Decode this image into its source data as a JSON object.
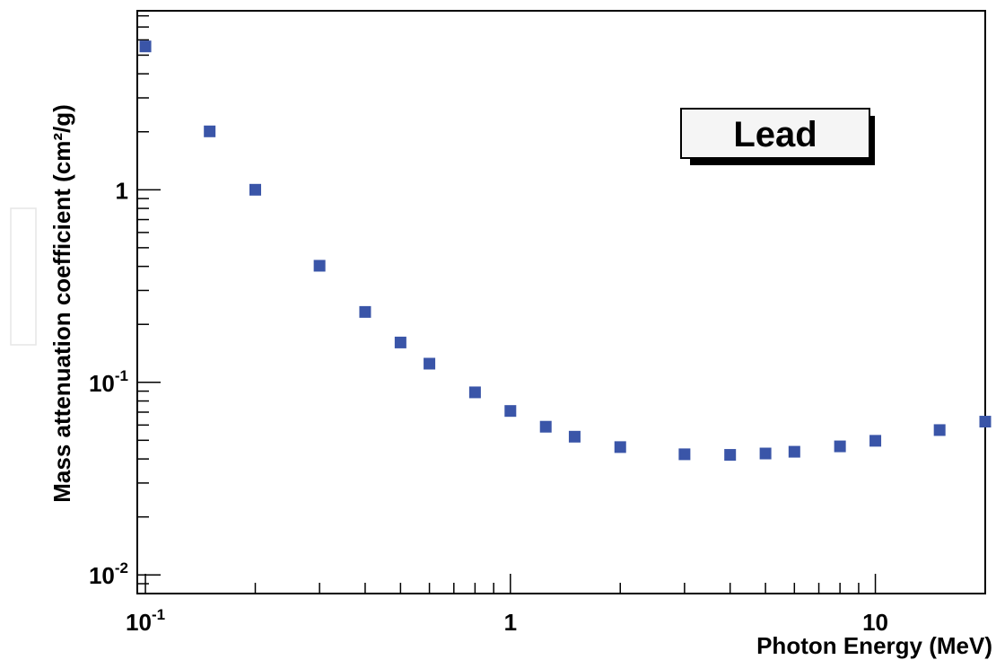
{
  "chart_data": {
    "type": "scatter",
    "title": "",
    "xlabel": "Photon Energy (MeV)",
    "ylabel": "Mass attenuation coefficient (cm²/g)",
    "xscale": "log",
    "yscale": "log",
    "xlim": [
      0.095,
      20.0
    ],
    "ylim": [
      0.008,
      8.5
    ],
    "grid": false,
    "x_ticks": [
      {
        "value": 0.1,
        "mantissa": "10",
        "exp": "-1"
      },
      {
        "value": 1,
        "mantissa": "1",
        "exp": ""
      },
      {
        "value": 10,
        "mantissa": "10",
        "exp": ""
      }
    ],
    "y_ticks": [
      {
        "value": 0.01,
        "mantissa": "10",
        "exp": "-2"
      },
      {
        "value": 0.1,
        "mantissa": "10",
        "exp": "-1"
      },
      {
        "value": 1,
        "mantissa": "1",
        "exp": ""
      }
    ],
    "legend": {
      "text": "Lead",
      "position": "top-right"
    },
    "marker_color": "#3a55a8",
    "series": [
      {
        "x": [
          0.1,
          0.15,
          0.2,
          0.3,
          0.4,
          0.5,
          0.6,
          0.8,
          1.0,
          1.25,
          1.5,
          2.0,
          3.0,
          4.0,
          5.0,
          6.0,
          8.0,
          10.0,
          15.0,
          20.0
        ],
        "y": [
          5.55,
          2.01,
          1.0,
          0.403,
          0.232,
          0.161,
          0.125,
          0.0887,
          0.071,
          0.0588,
          0.0522,
          0.0461,
          0.0423,
          0.042,
          0.0427,
          0.0436,
          0.0465,
          0.0497,
          0.0565,
          0.0625
        ]
      }
    ]
  }
}
